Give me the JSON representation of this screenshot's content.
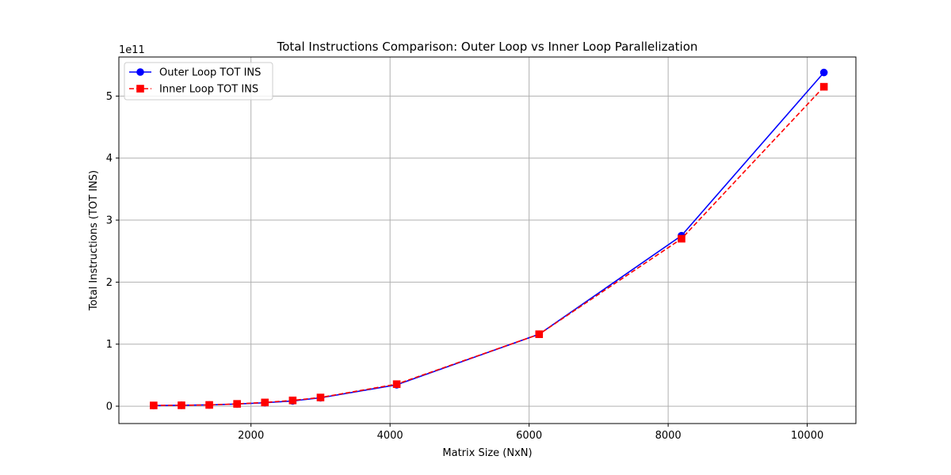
{
  "chart_data": {
    "type": "line",
    "title": "Total Instructions Comparison: Outer Loop vs Inner Loop Parallelization",
    "xlabel": "Matrix Size (NxN)",
    "ylabel": "Total Instructions (TOT INS)",
    "y_offset_label": "1e11",
    "xlim": [
      100,
      10700
    ],
    "ylim": [
      -0.28,
      5.63
    ],
    "x_ticks": [
      2000,
      4000,
      6000,
      8000,
      10000
    ],
    "x_tick_labels": [
      "2000",
      "4000",
      "6000",
      "8000",
      "10000"
    ],
    "y_ticks": [
      0,
      1,
      2,
      3,
      4,
      5
    ],
    "y_tick_labels": [
      "0",
      "1",
      "2",
      "3",
      "4",
      "5"
    ],
    "grid": true,
    "legend": "top-left",
    "x": [
      600,
      1000,
      1400,
      1800,
      2200,
      2600,
      3000,
      4096,
      6144,
      8192,
      10240
    ],
    "series": [
      {
        "name": "Outer Loop TOT INS",
        "color": "#0000ff",
        "linestyle": "solid",
        "marker": "circle",
        "values": [
          0.01,
          0.015,
          0.02,
          0.035,
          0.055,
          0.085,
          0.135,
          0.345,
          1.16,
          2.75,
          5.38
        ]
      },
      {
        "name": "Inner Loop TOT INS",
        "color": "#ff0000",
        "linestyle": "dashed",
        "marker": "square",
        "values": [
          0.012,
          0.014,
          0.02,
          0.037,
          0.06,
          0.093,
          0.14,
          0.355,
          1.16,
          2.7,
          5.15
        ]
      }
    ]
  }
}
